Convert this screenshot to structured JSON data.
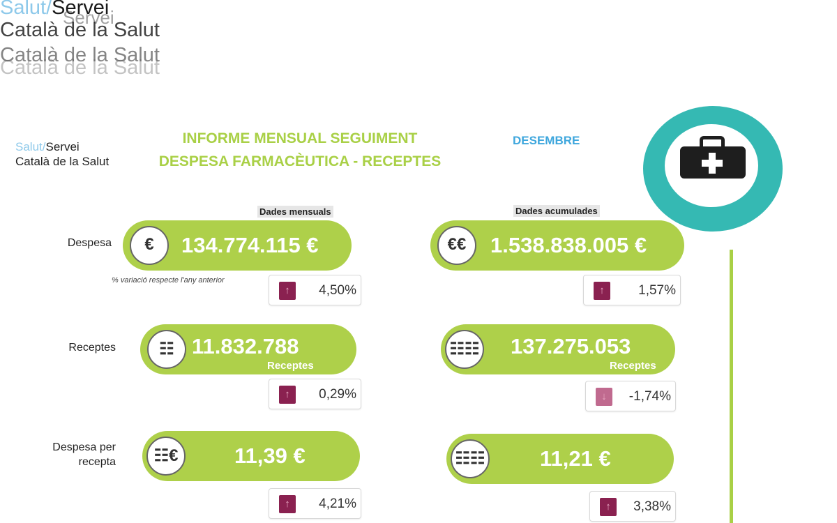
{
  "logo": {
    "part1": "Salut/",
    "part2": "Servei",
    "line2": "Català de la Salut"
  },
  "report": {
    "title_line1": "INFORME MENSUAL SEGUIMENT",
    "title_line2": "DESPESA FARMACÈUTICA - RECEPTES",
    "month": "DESEMBRE"
  },
  "columns": {
    "monthly": "Dades mensuals",
    "cumulative": "Dades acumulades"
  },
  "variation_note": "% variació respecte l'any anterior",
  "rows": [
    {
      "label": "Despesa",
      "monthly": {
        "value": "134.774.115 €",
        "unit": "",
        "variation": "4,50%",
        "trend": "up"
      },
      "cumulative": {
        "value": "1.538.838.005 €",
        "unit": "",
        "variation": "1,57%",
        "trend": "up"
      }
    },
    {
      "label": "Receptes",
      "monthly": {
        "value": "11.832.788",
        "unit": "Receptes",
        "variation": "0,29%",
        "trend": "up"
      },
      "cumulative": {
        "value": "137.275.053",
        "unit": "Receptes",
        "variation": "-1,74%",
        "trend": "down"
      }
    },
    {
      "label_line1": "Despesa per",
      "label_line2": "recepta",
      "monthly": {
        "value": "11,39 €",
        "unit": "",
        "variation": "4,21%",
        "trend": "up"
      },
      "cumulative": {
        "value": "11,21 €",
        "unit": "",
        "variation": "3,38%",
        "trend": "up"
      }
    }
  ],
  "colors": {
    "pill": "#aed04a",
    "title": "#a9d046",
    "month": "#3fa7dd",
    "ring": "#35b9b3",
    "arrow": "#8a2150"
  },
  "icons": {
    "header": "first-aid-kit-icon",
    "money": "money-bag-icon",
    "prescription": "prescription-icon",
    "arrow_up": "arrow-up-icon",
    "arrow_down": "arrow-down-icon"
  }
}
